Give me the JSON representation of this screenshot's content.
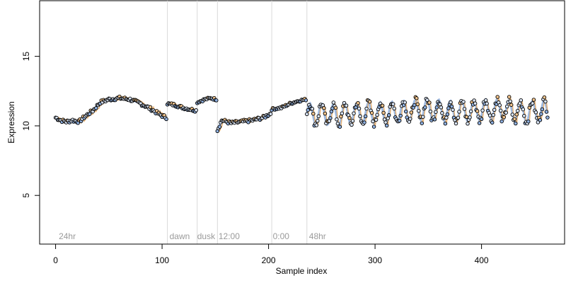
{
  "chart_data": {
    "type": "scatter",
    "title": "",
    "xlabel": "Sample index",
    "ylabel": "Expression",
    "xlim": [
      -15,
      478
    ],
    "ylim": [
      1.5,
      19
    ],
    "xticks": [
      0,
      100,
      200,
      300,
      400
    ],
    "yticks": [
      5,
      10,
      15
    ],
    "grid": false,
    "legend": "none",
    "colors": {
      "line_blue": "#7ea1d6",
      "line_orange": "#e6a55a",
      "point_stroke": "#000000",
      "point_fill_light": "#d9e4f5",
      "point_fill_orange": "#f3c58e",
      "point_fill_blue": "#8fb0e0",
      "separator": "#d9d9d9",
      "region_label": "#9a9a9a"
    },
    "separators": [
      105,
      133,
      152,
      203,
      236
    ],
    "region_labels": [
      {
        "x": 3,
        "text": "24hr"
      },
      {
        "x": 107,
        "text": "dawn"
      },
      {
        "x": 133,
        "text": "dusk"
      },
      {
        "x": 153,
        "text": "12:00"
      },
      {
        "x": 204,
        "text": "0:00"
      },
      {
        "x": 238,
        "text": "48hr"
      }
    ],
    "segments": [
      {
        "x0": 0,
        "x1": 104,
        "knots": [
          [
            0,
            10.6
          ],
          [
            5,
            10.4
          ],
          [
            10,
            10.3
          ],
          [
            16,
            10.4
          ],
          [
            22,
            10.3
          ],
          [
            28,
            10.7
          ],
          [
            35,
            11.1
          ],
          [
            42,
            11.7
          ],
          [
            50,
            11.9
          ],
          [
            60,
            12.0
          ],
          [
            70,
            11.9
          ],
          [
            80,
            11.6
          ],
          [
            90,
            11.2
          ],
          [
            98,
            10.8
          ],
          [
            104,
            10.6
          ]
        ],
        "amp": 0.12,
        "amp2": 0,
        "per": 0,
        "lag": 3
      },
      {
        "x0": 105,
        "x1": 132,
        "knots": [
          [
            105,
            11.6
          ],
          [
            112,
            11.5
          ],
          [
            120,
            11.3
          ],
          [
            126,
            11.2
          ],
          [
            132,
            11.1
          ]
        ],
        "amp": 0.1,
        "amp2": 0,
        "per": 0,
        "lag": 2
      },
      {
        "x0": 133,
        "x1": 151,
        "knots": [
          [
            133,
            11.7
          ],
          [
            140,
            11.9
          ],
          [
            146,
            12.0
          ],
          [
            151,
            11.9
          ]
        ],
        "amp": 0.08,
        "amp2": 0,
        "per": 0,
        "lag": 1
      },
      {
        "x0": 152,
        "x1": 202,
        "knots": [
          [
            152,
            9.7
          ],
          [
            156,
            10.4
          ],
          [
            165,
            10.2
          ],
          [
            175,
            10.3
          ],
          [
            185,
            10.4
          ],
          [
            195,
            10.6
          ],
          [
            202,
            10.9
          ]
        ],
        "amp": 0.12,
        "amp2": 0,
        "per": 0,
        "lag": 2
      },
      {
        "x0": 203,
        "x1": 235,
        "knots": [
          [
            203,
            11.2
          ],
          [
            212,
            11.3
          ],
          [
            220,
            11.6
          ],
          [
            228,
            11.8
          ],
          [
            235,
            11.9
          ]
        ],
        "amp": 0.08,
        "amp2": 0,
        "per": 0,
        "lag": 1
      },
      {
        "x0": 236,
        "x1": 462,
        "knots": [
          [
            236,
            10.9
          ],
          [
            260,
            10.8
          ],
          [
            290,
            10.9
          ],
          [
            320,
            11.0
          ],
          [
            350,
            11.2
          ],
          [
            380,
            11.0
          ],
          [
            410,
            11.2
          ],
          [
            440,
            11.0
          ],
          [
            462,
            11.1
          ]
        ],
        "amp": 0.3,
        "amp2": 0.75,
        "per": 11,
        "lag": 1
      }
    ]
  }
}
